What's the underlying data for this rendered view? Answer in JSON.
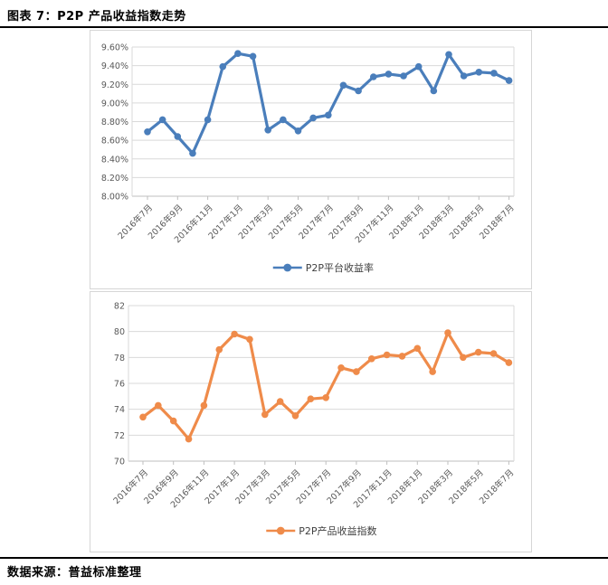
{
  "header": {
    "title": "图表 7：P2P 产品收益指数走势"
  },
  "footer": {
    "source": "数据来源：普益标准整理"
  },
  "colors": {
    "series1": "#4a7ebb",
    "series2": "#ef8b4a",
    "gridline": "#d9d9d9",
    "axis_line": "#bfbfbf",
    "tick_text": "#595959",
    "legend_text": "#404040",
    "rule": "#000000"
  },
  "chart_data": [
    {
      "type": "line",
      "title": "",
      "x": [
        "2016年7月",
        "2016年8月",
        "2016年9月",
        "2016年10月",
        "2016年11月",
        "2016年12月",
        "2017年1月",
        "2017年2月",
        "2017年3月",
        "2017年4月",
        "2017年5月",
        "2017年6月",
        "2017年7月",
        "2017年8月",
        "2017年9月",
        "2017年10月",
        "2017年11月",
        "2017年12月",
        "2018年1月",
        "2018年2月",
        "2018年3月",
        "2018年4月",
        "2018年5月",
        "2018年6月",
        "2018年7月"
      ],
      "x_tick_every": 2,
      "series": [
        {
          "name": "P2P平台收益率",
          "color": "#4a7ebb",
          "values": [
            8.69,
            8.82,
            8.64,
            8.46,
            8.82,
            9.39,
            9.53,
            9.5,
            8.71,
            8.82,
            8.7,
            8.84,
            8.87,
            9.19,
            9.13,
            9.28,
            9.31,
            9.29,
            9.39,
            9.13,
            9.52,
            9.29,
            9.33,
            9.32,
            9.24
          ]
        }
      ],
      "ylim": [
        8.0,
        9.6
      ],
      "ytick_step": 0.2,
      "ytick_format": "percent2",
      "grid": true,
      "legend_position": "bottom"
    },
    {
      "type": "line",
      "title": "",
      "x": [
        "2016年7月",
        "2016年8月",
        "2016年9月",
        "2016年10月",
        "2016年11月",
        "2016年12月",
        "2017年1月",
        "2017年2月",
        "2017年3月",
        "2017年4月",
        "2017年5月",
        "2017年6月",
        "2017年7月",
        "2017年8月",
        "2017年9月",
        "2017年10月",
        "2017年11月",
        "2017年12月",
        "2018年1月",
        "2018年2月",
        "2018年3月",
        "2018年4月",
        "2018年5月",
        "2018年6月",
        "2018年7月"
      ],
      "x_tick_every": 2,
      "series": [
        {
          "name": "P2P产品收益指数",
          "color": "#ef8b4a",
          "values": [
            73.4,
            74.3,
            73.1,
            71.7,
            74.3,
            78.6,
            79.8,
            79.4,
            73.6,
            74.6,
            73.5,
            74.8,
            74.9,
            77.2,
            76.9,
            77.9,
            78.2,
            78.1,
            78.7,
            76.9,
            79.9,
            78.0,
            78.4,
            78.3,
            77.6
          ]
        }
      ],
      "ylim": [
        70,
        82
      ],
      "ytick_step": 2,
      "ytick_format": "integer",
      "grid": true,
      "legend_position": "bottom"
    }
  ]
}
